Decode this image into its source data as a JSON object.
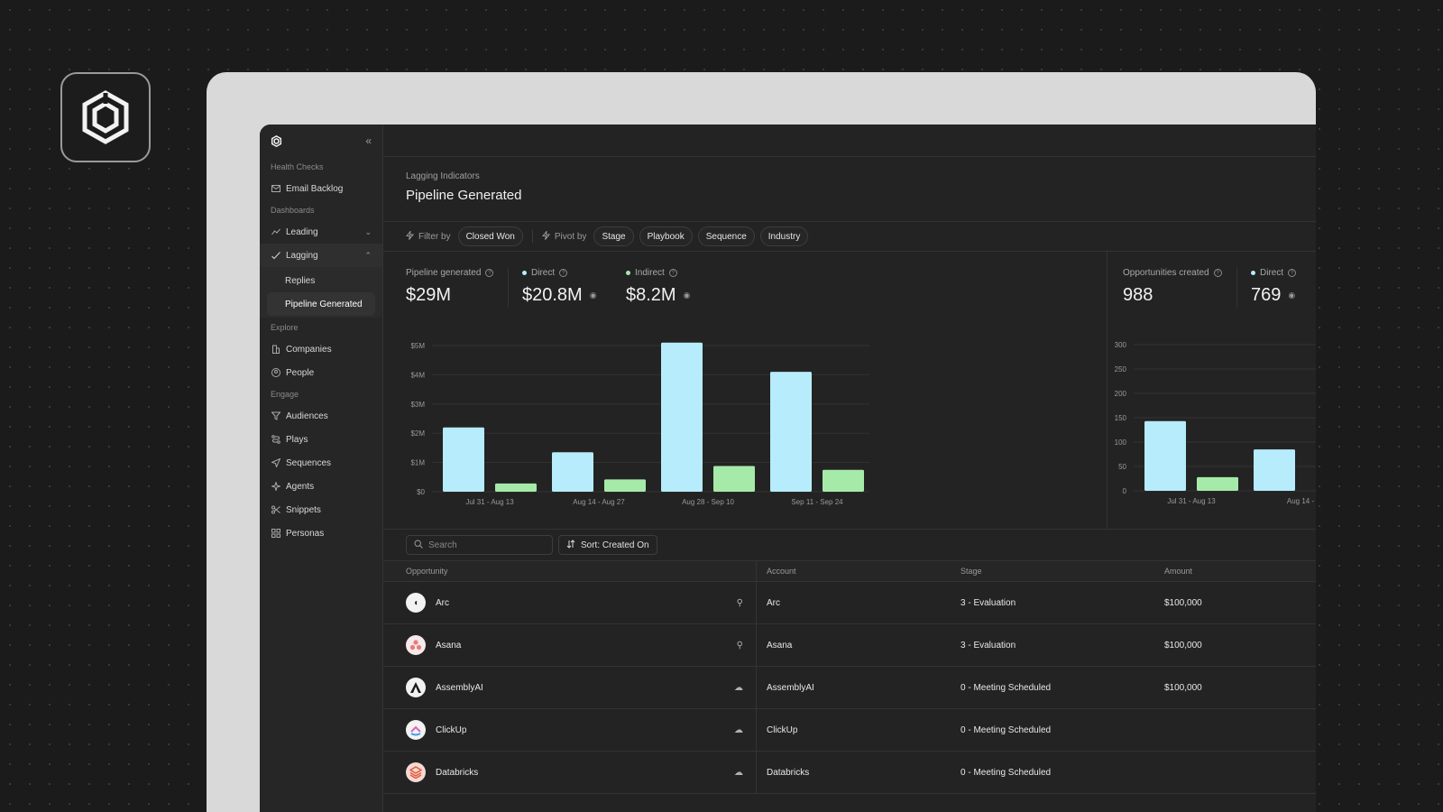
{
  "sidebar": {
    "sections": {
      "health": "Health Checks",
      "dashboards": "Dashboards",
      "explore": "Explore",
      "engage": "Engage"
    },
    "items": {
      "email_backlog": "Email Backlog",
      "leading": "Leading",
      "lagging": "Lagging",
      "replies": "Replies",
      "pipeline_generated": "Pipeline Generated",
      "companies": "Companies",
      "people": "People",
      "audiences": "Audiences",
      "plays": "Plays",
      "sequences": "Sequences",
      "agents": "Agents",
      "snippets": "Snippets",
      "personas": "Personas"
    }
  },
  "header": {
    "breadcrumb": "Lagging Indicators",
    "title": "Pipeline Generated"
  },
  "filters": {
    "filter_label": "Filter by",
    "filter_value": "Closed Won",
    "pivot_label": "Pivot by",
    "pivots": [
      "Stage",
      "Playbook",
      "Sequence",
      "Industry"
    ]
  },
  "kpis": {
    "pipeline_label": "Pipeline generated",
    "pipeline_value": "$29M",
    "direct_label": "Direct",
    "direct_value": "$20.8M",
    "indirect_label": "Indirect",
    "indirect_value": "$8.2M",
    "opps_label": "Opportunities created",
    "opps_value": "988",
    "opps_direct_label": "Direct",
    "opps_direct_value": "769"
  },
  "colors": {
    "direct": "#b6ecfb",
    "indirect": "#a6eaa9"
  },
  "chart_data": [
    {
      "type": "bar",
      "categories": [
        "Jul 31 - Aug 13",
        "Aug 14 - Aug 27",
        "Aug 28 - Sep 10",
        "Sep 11 - Sep 24"
      ],
      "series": [
        {
          "name": "Direct",
          "values": [
            2.2,
            1.35,
            5.1,
            4.1
          ]
        },
        {
          "name": "Indirect",
          "values": [
            0.28,
            0.42,
            0.88,
            0.75
          ]
        }
      ],
      "yticks": [
        "$0",
        "$1M",
        "$2M",
        "$3M",
        "$4M",
        "$5M"
      ],
      "ylim": [
        0,
        5
      ],
      "unit": "$M",
      "grid": true
    },
    {
      "type": "bar",
      "categories": [
        "Jul 31 - Aug 13",
        "Aug 14 -"
      ],
      "series": [
        {
          "name": "Direct",
          "values": [
            143,
            85
          ]
        },
        {
          "name": "Indirect",
          "values": [
            28,
            null
          ]
        }
      ],
      "yticks": [
        "0",
        "50",
        "100",
        "150",
        "200",
        "250",
        "300"
      ],
      "ylim": [
        0,
        300
      ],
      "grid": true
    }
  ],
  "table": {
    "search_placeholder": "Search",
    "sort_label": "Sort: Created On",
    "columns": {
      "opportunity": "Opportunity",
      "account": "Account",
      "stage": "Stage",
      "amount": "Amount"
    },
    "rows": [
      {
        "name": "Arc",
        "account": "Arc",
        "stage": "3 - Evaluation",
        "amount": "$100,000",
        "source_icon": "hubspot-icon"
      },
      {
        "name": "Asana",
        "account": "Asana",
        "stage": "3 - Evaluation",
        "amount": "$100,000",
        "source_icon": "hubspot-icon"
      },
      {
        "name": "AssemblyAI",
        "account": "AssemblyAI",
        "stage": "0 - Meeting Scheduled",
        "amount": "$100,000",
        "source_icon": "salesforce-icon"
      },
      {
        "name": "ClickUp",
        "account": "ClickUp",
        "stage": "0 - Meeting Scheduled",
        "amount": "",
        "source_icon": "salesforce-icon"
      },
      {
        "name": "Databricks",
        "account": "Databricks",
        "stage": "0 - Meeting Scheduled",
        "amount": "",
        "source_icon": "salesforce-icon"
      }
    ]
  }
}
